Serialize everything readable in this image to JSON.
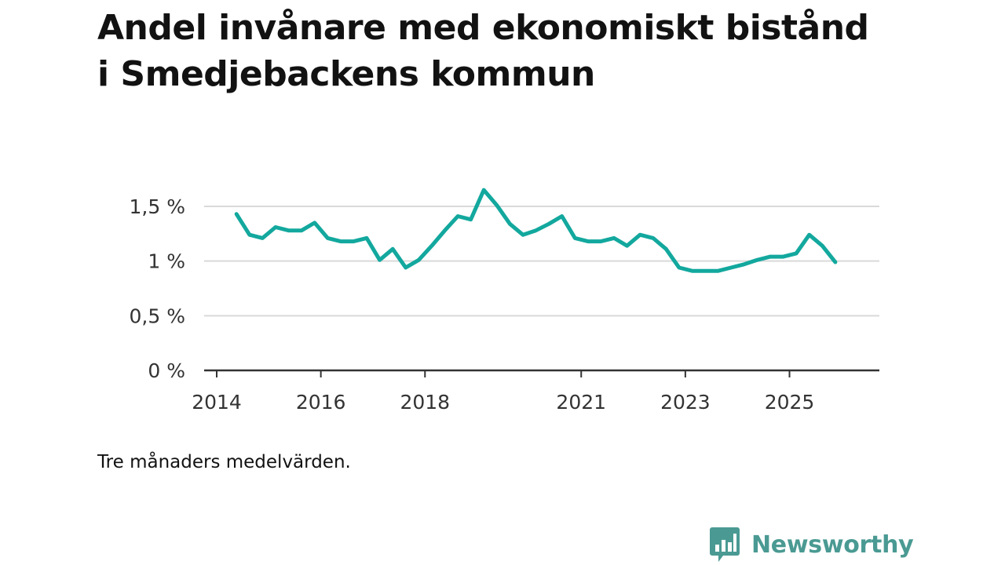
{
  "title": "Andel invånare med ekonomiskt bistånd i Smedjebackens kommun",
  "note": "Tre månaders medelvärden.",
  "brand": {
    "name": "Newsworthy",
    "icon": "bar-chart-speech-bubble-icon",
    "color": "#4a9a93"
  },
  "chart_data": {
    "type": "line",
    "title": "Andel invånare med ekonomiskt bistånd i Smedjebackens kommun",
    "xlabel": "",
    "ylabel": "",
    "xlim": [
      2014.0,
      2026.5
    ],
    "ylim": [
      0,
      1.5
    ],
    "y_ticks": [
      {
        "value": 0,
        "label": "0 %"
      },
      {
        "value": 0.5,
        "label": "0,5 %"
      },
      {
        "value": 1,
        "label": "1 %"
      },
      {
        "value": 1.5,
        "label": "1,5 %"
      }
    ],
    "x_ticks": [
      {
        "value": 2014,
        "label": "2014"
      },
      {
        "value": 2016,
        "label": "2016"
      },
      {
        "value": 2018,
        "label": "2018"
      },
      {
        "value": 2021,
        "label": "2021"
      },
      {
        "value": 2023,
        "label": "2023"
      },
      {
        "value": 2025,
        "label": "2025"
      }
    ],
    "grid": true,
    "line_color": "#13a89e",
    "series": [
      {
        "name": "Andel invånare med ekonomiskt bistånd",
        "x": [
          2014.38,
          2014.63,
          2014.88,
          2015.13,
          2015.38,
          2015.63,
          2015.88,
          2016.13,
          2016.38,
          2016.63,
          2016.88,
          2017.13,
          2017.38,
          2017.63,
          2017.88,
          2018.13,
          2018.38,
          2018.63,
          2018.88,
          2019.13,
          2019.38,
          2019.63,
          2019.88,
          2020.13,
          2020.38,
          2020.63,
          2020.88,
          2021.13,
          2021.38,
          2021.63,
          2021.88,
          2022.13,
          2022.38,
          2022.63,
          2022.88,
          2023.13,
          2023.38,
          2023.63,
          2023.88,
          2024.13,
          2024.38,
          2024.63,
          2024.88,
          2025.13,
          2025.38,
          2025.63,
          2025.88
        ],
        "values": [
          1.43,
          1.24,
          1.21,
          1.31,
          1.28,
          1.28,
          1.35,
          1.21,
          1.18,
          1.18,
          1.21,
          1.01,
          1.11,
          0.94,
          1.01,
          1.14,
          1.28,
          1.41,
          1.38,
          1.65,
          1.51,
          1.34,
          1.24,
          1.28,
          1.34,
          1.41,
          1.21,
          1.18,
          1.18,
          1.21,
          1.14,
          1.24,
          1.21,
          1.11,
          0.94,
          0.91,
          0.91,
          0.91,
          0.94,
          0.97,
          1.01,
          1.04,
          1.04,
          1.07,
          1.24,
          1.14,
          0.99
        ]
      }
    ]
  }
}
